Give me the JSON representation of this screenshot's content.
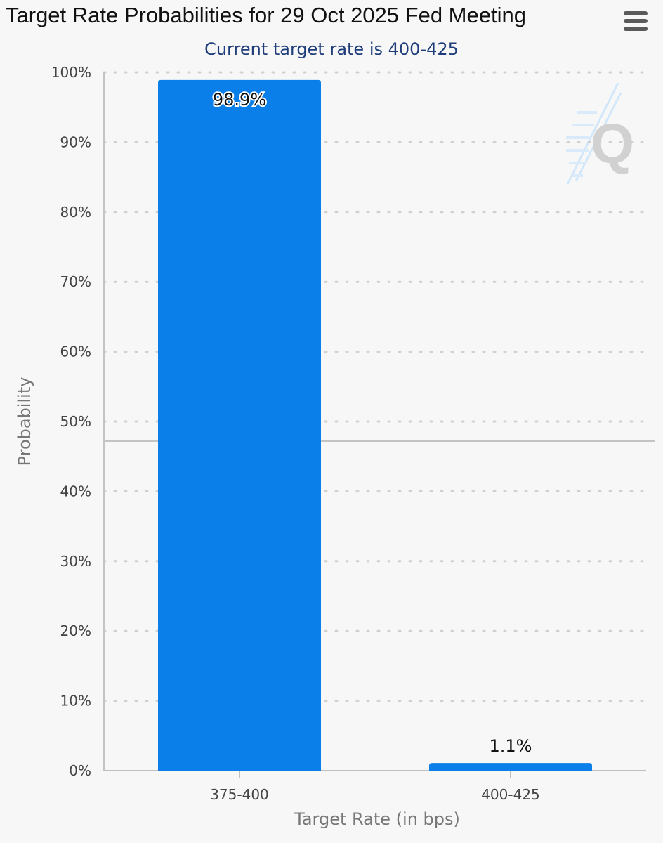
{
  "chart_data": {
    "type": "bar",
    "title": "Target Rate Probabilities for 29 Oct 2025 Fed Meeting",
    "subtitle": "Current target rate is 400-425",
    "xlabel": "Target Rate (in bps)",
    "ylabel": "Probability",
    "categories": [
      "375-400",
      "400-425"
    ],
    "values": [
      98.9,
      1.1
    ],
    "data_labels": [
      "98.9%",
      "1.1%"
    ],
    "ylim": [
      0,
      100
    ],
    "yticks": [
      0,
      10,
      20,
      30,
      40,
      50,
      60,
      70,
      80,
      90,
      100
    ],
    "ytick_labels": [
      "0%",
      "10%",
      "20%",
      "30%",
      "40%",
      "50%",
      "60%",
      "70%",
      "80%",
      "90%",
      "100%"
    ],
    "grid": true,
    "legend": "none",
    "bar_color": "#0a7fe9"
  },
  "menu": {
    "icon": "hamburger-menu-icon"
  },
  "watermark": {
    "icon": "q-logo-icon"
  }
}
